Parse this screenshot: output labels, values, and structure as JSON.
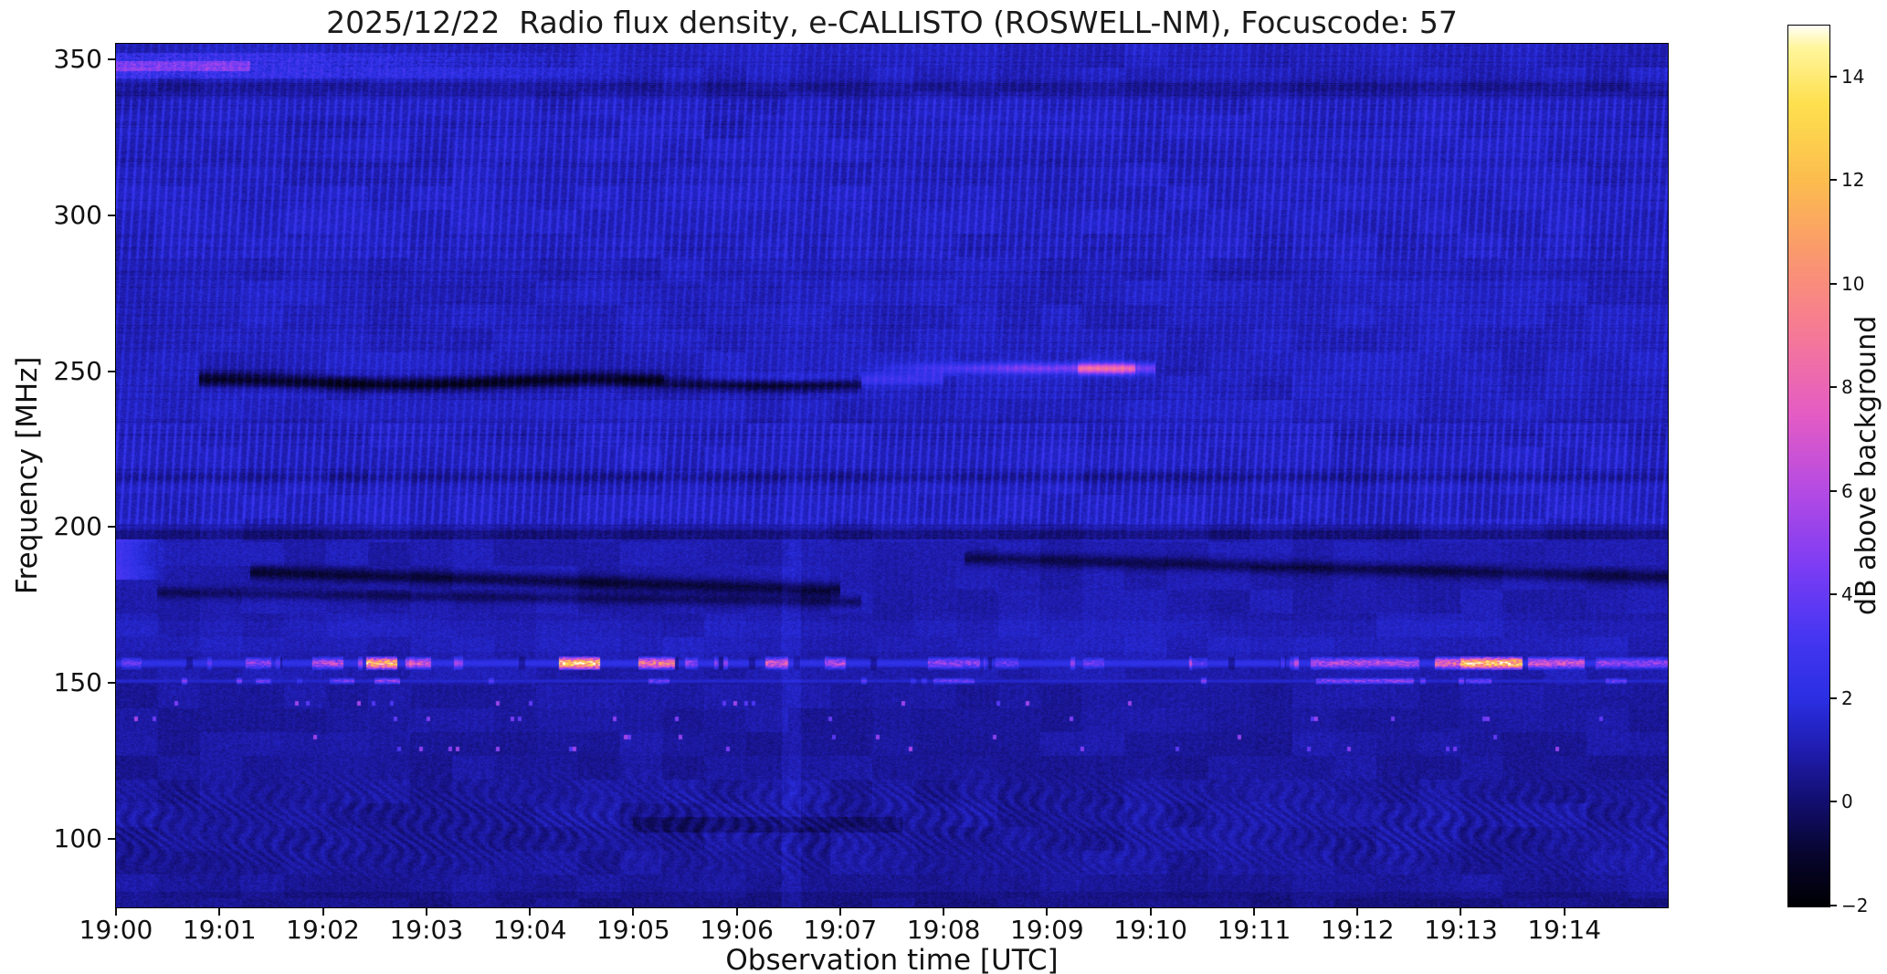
{
  "title": "2025/12/22  Radio flux density, e-CALLISTO (ROSWELL-NM), Focuscode: 57",
  "chart_data": {
    "type": "heatmap",
    "subtype": "radio-spectrogram",
    "title": "2025/12/22  Radio flux density, e-CALLISTO (ROSWELL-NM), Focuscode: 57",
    "xlabel": "Observation time [UTC]",
    "ylabel": "Frequency [MHz]",
    "x_ticks": [
      "19:00",
      "19:01",
      "19:02",
      "19:03",
      "19:04",
      "19:05",
      "19:06",
      "19:07",
      "19:08",
      "19:09",
      "19:10",
      "19:11",
      "19:12",
      "19:13",
      "19:14"
    ],
    "x_range_minutes": [
      0,
      15
    ],
    "y_ticks": [
      350,
      300,
      250,
      200,
      150,
      100
    ],
    "y_range_mhz": [
      78,
      355
    ],
    "grid": false,
    "colorbar": {
      "label": "dB above background",
      "range": [
        -2,
        15
      ],
      "ticks": [
        {
          "v": 14,
          "label": "14"
        },
        {
          "v": 12,
          "label": "12"
        },
        {
          "v": 10,
          "label": "10"
        },
        {
          "v": 8,
          "label": "8"
        },
        {
          "v": 6,
          "label": "6"
        },
        {
          "v": 4,
          "label": "4"
        },
        {
          "v": 2,
          "label": "2"
        },
        {
          "v": 0,
          "label": "0"
        },
        {
          "v": -2,
          "label": "−2"
        }
      ],
      "colormap_stops": [
        [
          -2,
          "#000004"
        ],
        [
          -1,
          "#07052e"
        ],
        [
          0,
          "#120e6e"
        ],
        [
          1,
          "#1f1cae"
        ],
        [
          2,
          "#2a2fe2"
        ],
        [
          3.2,
          "#4636f2"
        ],
        [
          4.5,
          "#7a3cf4"
        ],
        [
          6,
          "#b44ae4"
        ],
        [
          7.5,
          "#e45cc4"
        ],
        [
          9,
          "#f57898"
        ],
        [
          10.5,
          "#fa9670"
        ],
        [
          12,
          "#fcbc4e"
        ],
        [
          13.5,
          "#fee04e"
        ],
        [
          14.6,
          "#fff69e"
        ],
        [
          15,
          "#fffef4"
        ]
      ]
    },
    "features": {
      "background_db": 1.05,
      "rfi_lines": [
        {
          "freq_mhz": 156.3,
          "half_width_mhz": 2.3,
          "base_db": 2.4,
          "bursts": [
            [
              0.05,
              0.25,
              4
            ],
            [
              1.25,
              1.5,
              5
            ],
            [
              1.9,
              2.2,
              6
            ],
            [
              2.42,
              2.72,
              12
            ],
            [
              2.8,
              3.05,
              7
            ],
            [
              4.28,
              4.68,
              13
            ],
            [
              5.05,
              5.4,
              9
            ],
            [
              5.5,
              5.62,
              5
            ],
            [
              6.28,
              6.5,
              7
            ],
            [
              6.85,
              7.05,
              6
            ],
            [
              7.85,
              8.35,
              5
            ],
            [
              8.5,
              8.72,
              4
            ],
            [
              9.35,
              9.55,
              4
            ],
            [
              10.4,
              10.55,
              3.5
            ],
            [
              11.55,
              12.6,
              6
            ],
            [
              12.75,
              13.0,
              8
            ],
            [
              13.0,
              13.6,
              13
            ],
            [
              13.65,
              14.2,
              7
            ],
            [
              14.3,
              15.0,
              5
            ]
          ]
        },
        {
          "freq_mhz": 150.6,
          "half_width_mhz": 1.2,
          "base_db": 1.8,
          "bursts": [
            [
              1.35,
              1.5,
              4
            ],
            [
              2.1,
              2.3,
              4
            ],
            [
              2.5,
              2.75,
              5
            ],
            [
              5.15,
              5.35,
              4
            ],
            [
              7.9,
              8.3,
              4
            ],
            [
              11.6,
              12.55,
              5
            ],
            [
              13.05,
              13.3,
              4
            ],
            [
              14.4,
              14.6,
              4
            ]
          ]
        }
      ],
      "speckle_rows_mhz": [
        143.5,
        138.5,
        132.5,
        128.8
      ],
      "bright_streak": {
        "freq_mhz": 250.8,
        "t_start": 7.15,
        "t_end": 10.05,
        "db": 3.2,
        "peak": {
          "t_start": 9.3,
          "t_end": 9.85,
          "db": 7
        }
      },
      "faint_streak": {
        "freq_mhz": 247.3,
        "t_start": 5.3,
        "t_end": 8.0,
        "db": 1.4
      },
      "dark_lane": {
        "freq_mhz": 246.5,
        "t_start": 0.8,
        "t_end": 7.2,
        "depth_db": 2.6
      },
      "dark_band_216": {
        "freq_mhz": 216,
        "depth_db": 0.9
      },
      "dark_band_197": {
        "freq_mhz": 197.5,
        "depth_db": 1.1
      },
      "top_bright_band": {
        "freq_lo": 344,
        "freq_hi": 352,
        "t_fade_end": 5.5,
        "db": 2.0
      },
      "diag_dark_lanes": [
        {
          "f0": 185.5,
          "slope": -1.0,
          "t_start": 1.3,
          "t_end": 7.0,
          "depth_db": 1.8,
          "half_width_mhz": 1.6
        },
        {
          "f0": 179.0,
          "slope": -0.45,
          "t_start": 0.4,
          "t_end": 7.2,
          "depth_db": 1.2,
          "half_width_mhz": 1.3
        },
        {
          "f0": 190.0,
          "slope": -0.9,
          "t_start": 8.2,
          "t_end": 15.0,
          "depth_db": 1.5,
          "half_width_mhz": 1.5
        }
      ],
      "bright_column_t": 6.53
    }
  }
}
